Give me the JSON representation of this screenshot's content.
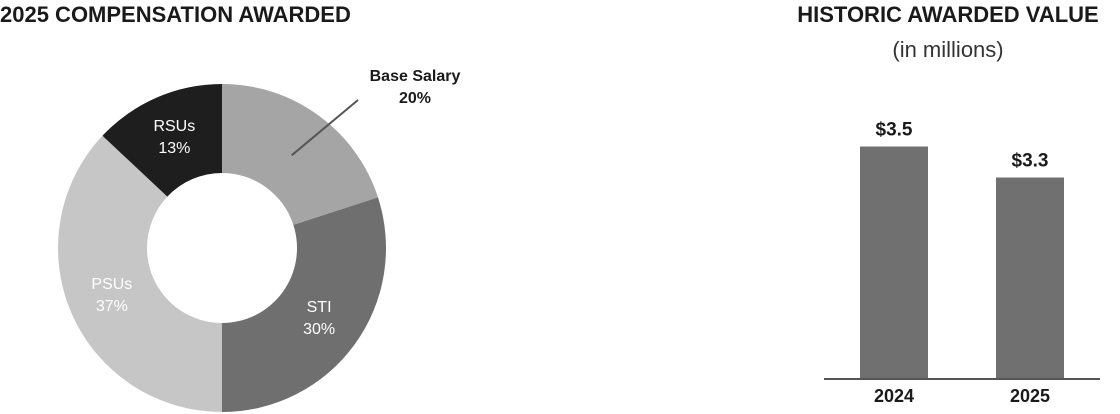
{
  "chart_data": [
    {
      "type": "pie",
      "donut": true,
      "title": "2025 COMPENSATION AWARDED",
      "categories": [
        "Base Salary",
        "STI",
        "PSUs",
        "RSUs"
      ],
      "values": [
        20,
        30,
        37,
        13
      ],
      "value_labels": [
        "20%",
        "30%",
        "37%",
        "13%"
      ],
      "colors": [
        "#a5a5a5",
        "#6f6f6f",
        "#c6c6c6",
        "#1e1e1e"
      ]
    },
    {
      "type": "bar",
      "title": "HISTORIC AWARDED VALUE",
      "subtitle": "(in millions)",
      "categories": [
        "2024",
        "2025"
      ],
      "values": [
        3.5,
        3.3
      ],
      "value_labels": [
        "$3.5",
        "$3.3"
      ],
      "color": "#707070",
      "ylim": [
        2,
        3.8
      ]
    }
  ]
}
